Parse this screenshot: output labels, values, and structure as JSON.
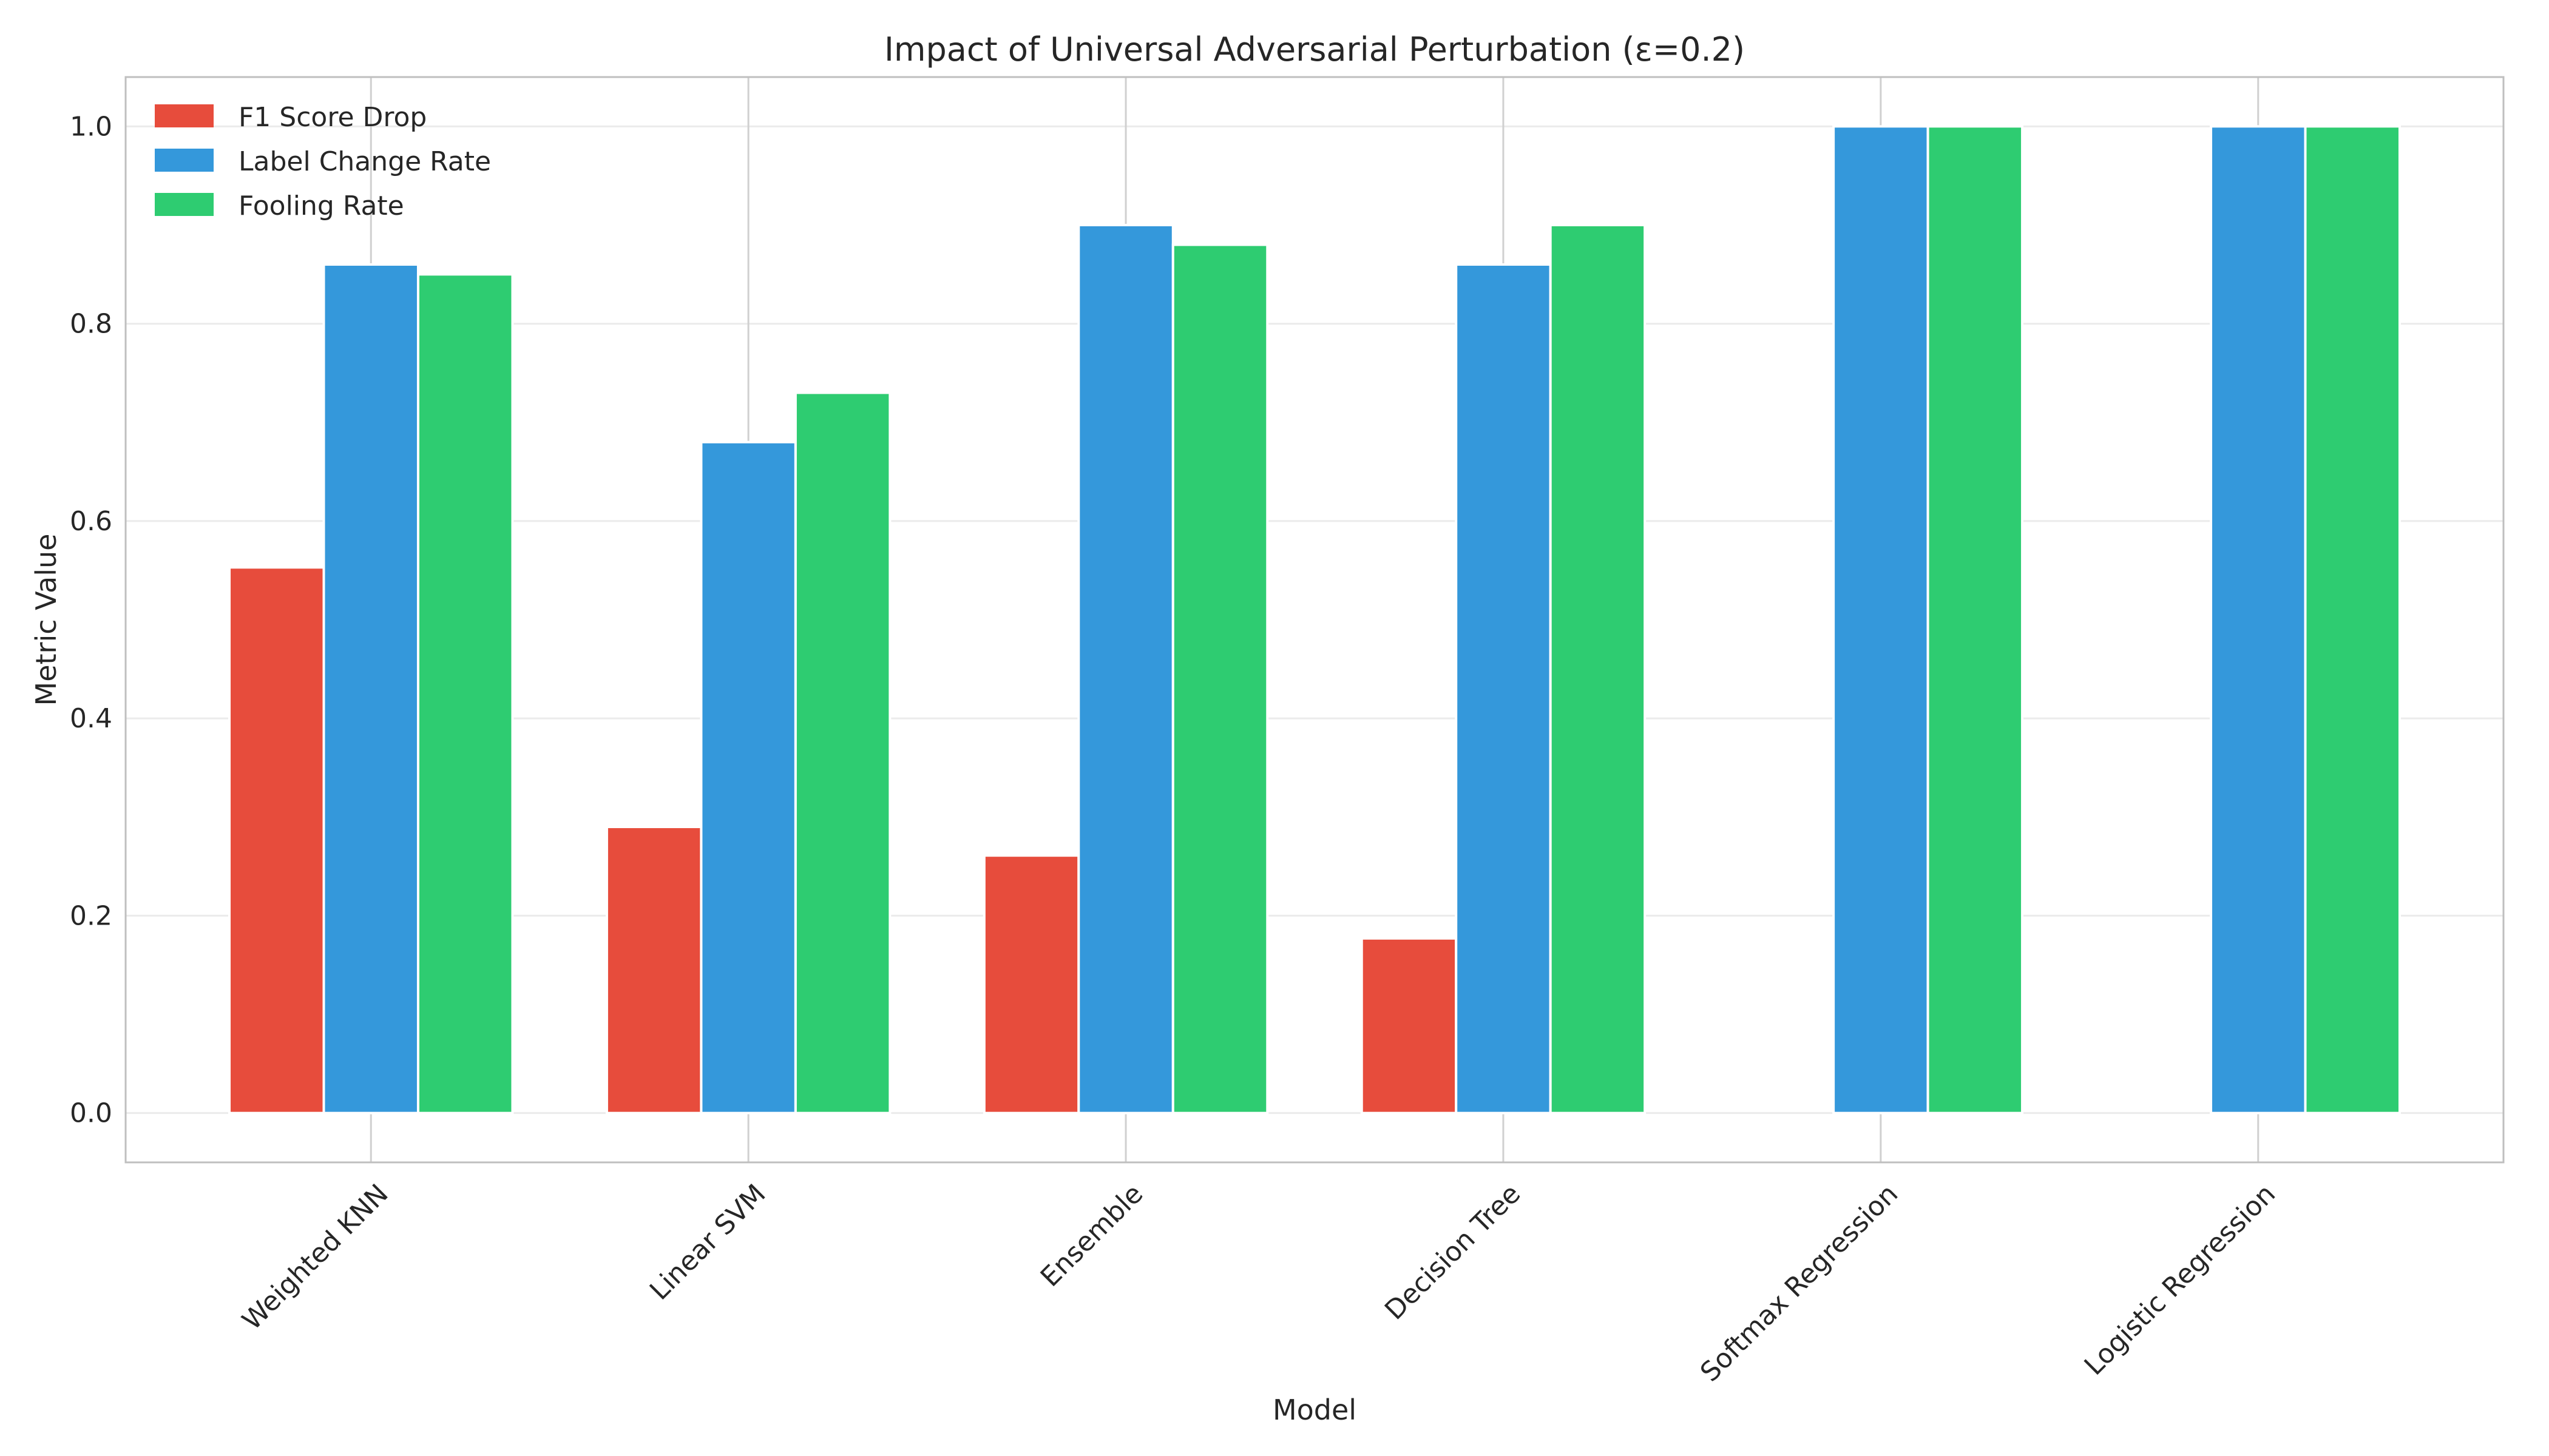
{
  "chart_data": {
    "type": "bar",
    "title": "Impact of Universal Adversarial Perturbation (ε=0.2)",
    "xlabel": "Model",
    "ylabel": "Metric Value",
    "categories": [
      "Weighted KNN",
      "Linear SVM",
      "Ensemble",
      "Decision Tree",
      "Softmax Regression",
      "Logistic Regression"
    ],
    "series": [
      {
        "name": "F1 Score Drop",
        "color": "#e74c3c",
        "values": [
          0.553,
          0.29,
          0.261,
          0.177,
          0.0,
          0.0
        ]
      },
      {
        "name": "Label Change Rate",
        "color": "#3498db",
        "values": [
          0.86,
          0.68,
          0.9,
          0.86,
          1.0,
          1.0
        ]
      },
      {
        "name": "Fooling Rate",
        "color": "#2ecc71",
        "values": [
          0.85,
          0.73,
          0.88,
          0.9,
          1.0,
          1.0
        ]
      }
    ],
    "ylim": [
      -0.05,
      1.05
    ],
    "yticks": [
      "0.0",
      "0.2",
      "0.4",
      "0.6",
      "0.8",
      "1.0"
    ],
    "grid": true,
    "legend": "top-left"
  }
}
